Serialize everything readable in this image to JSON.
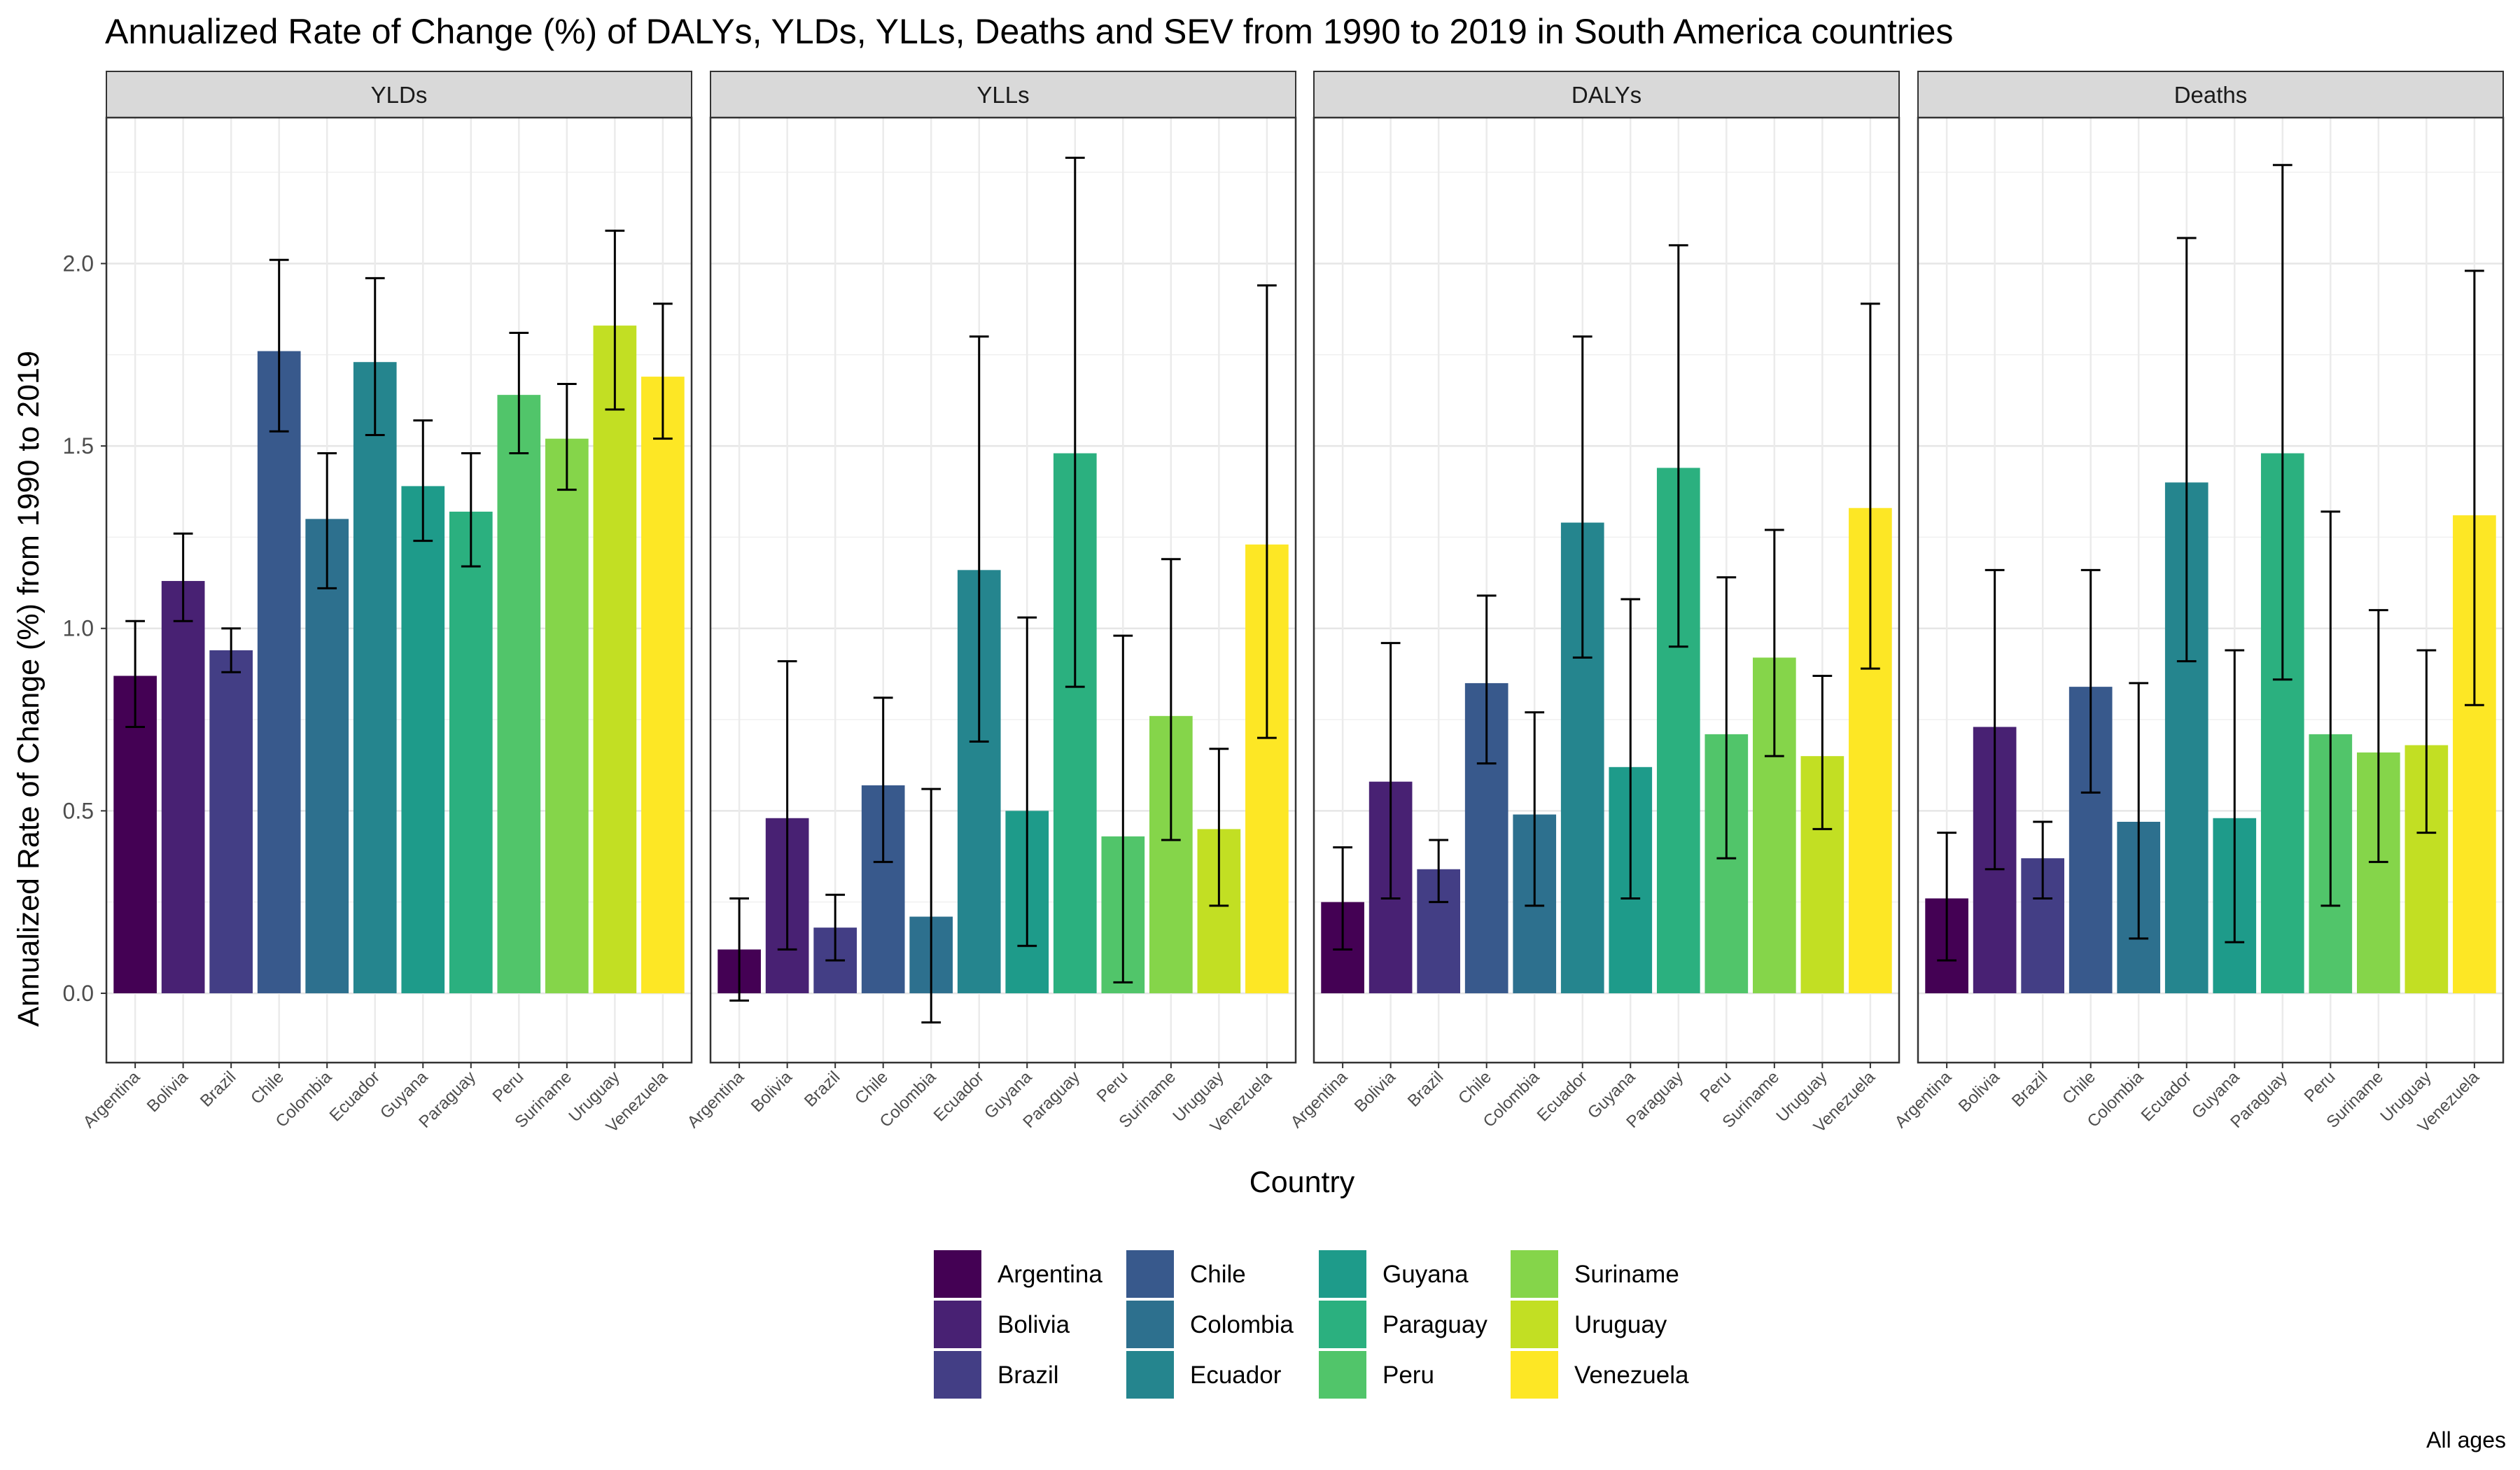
{
  "chart_data": {
    "type": "bar",
    "title": "Annualized Rate of Change (%) of DALYs, YLDs, YLLs, Deaths and SEV from 1990 to 2019 in South America countries",
    "xlabel": "Country",
    "ylabel": "Annualized Rate of Change (%) from 1990 to 2019",
    "caption": "All ages",
    "ylim": [
      -0.19,
      2.4
    ],
    "yticks": [
      "0.0",
      "0.5",
      "1.0",
      "1.5",
      "2.0"
    ],
    "grid": true,
    "legend_position": "bottom",
    "categories": [
      "Argentina",
      "Bolivia",
      "Brazil",
      "Chile",
      "Colombia",
      "Ecuador",
      "Guyana",
      "Paraguay",
      "Peru",
      "Suriname",
      "Uruguay",
      "Venezuela"
    ],
    "colors": [
      "#440154",
      "#482173",
      "#433E85",
      "#38598C",
      "#2D708E",
      "#25858E",
      "#1E9B8A",
      "#2BB07F",
      "#51C56A",
      "#85D54A",
      "#C2DF23",
      "#FDE725"
    ],
    "panels": [
      {
        "name": "YLDs",
        "values": [
          0.87,
          1.13,
          0.94,
          1.76,
          1.3,
          1.73,
          1.39,
          1.32,
          1.64,
          1.52,
          1.83,
          1.69
        ],
        "lower": [
          0.73,
          1.02,
          0.88,
          1.54,
          1.11,
          1.53,
          1.24,
          1.17,
          1.48,
          1.38,
          1.6,
          1.52
        ],
        "upper": [
          1.02,
          1.26,
          1.0,
          2.01,
          1.48,
          1.96,
          1.57,
          1.48,
          1.81,
          1.67,
          2.09,
          1.89
        ]
      },
      {
        "name": "YLLs",
        "values": [
          0.12,
          0.48,
          0.18,
          0.57,
          0.21,
          1.16,
          0.5,
          1.48,
          0.43,
          0.76,
          0.45,
          1.23
        ],
        "lower": [
          -0.02,
          0.12,
          0.09,
          0.36,
          -0.08,
          0.69,
          0.13,
          0.84,
          0.03,
          0.42,
          0.24,
          0.7
        ],
        "upper": [
          0.26,
          0.91,
          0.27,
          0.81,
          0.56,
          1.8,
          1.03,
          2.29,
          0.98,
          1.19,
          0.67,
          1.94
        ]
      },
      {
        "name": "DALYs",
        "values": [
          0.25,
          0.58,
          0.34,
          0.85,
          0.49,
          1.29,
          0.62,
          1.44,
          0.71,
          0.92,
          0.65,
          1.33
        ],
        "lower": [
          0.12,
          0.26,
          0.25,
          0.63,
          0.24,
          0.92,
          0.26,
          0.95,
          0.37,
          0.65,
          0.45,
          0.89
        ],
        "upper": [
          0.4,
          0.96,
          0.42,
          1.09,
          0.77,
          1.8,
          1.08,
          2.05,
          1.14,
          1.27,
          0.87,
          1.89
        ]
      },
      {
        "name": "Deaths",
        "values": [
          0.26,
          0.73,
          0.37,
          0.84,
          0.47,
          1.4,
          0.48,
          1.48,
          0.71,
          0.66,
          0.68,
          1.31
        ],
        "lower": [
          0.09,
          0.34,
          0.26,
          0.55,
          0.15,
          0.91,
          0.14,
          0.86,
          0.24,
          0.36,
          0.44,
          0.79
        ],
        "upper": [
          0.44,
          1.16,
          0.47,
          1.16,
          0.85,
          2.07,
          0.94,
          2.27,
          1.32,
          1.05,
          0.94,
          1.98
        ]
      }
    ]
  }
}
